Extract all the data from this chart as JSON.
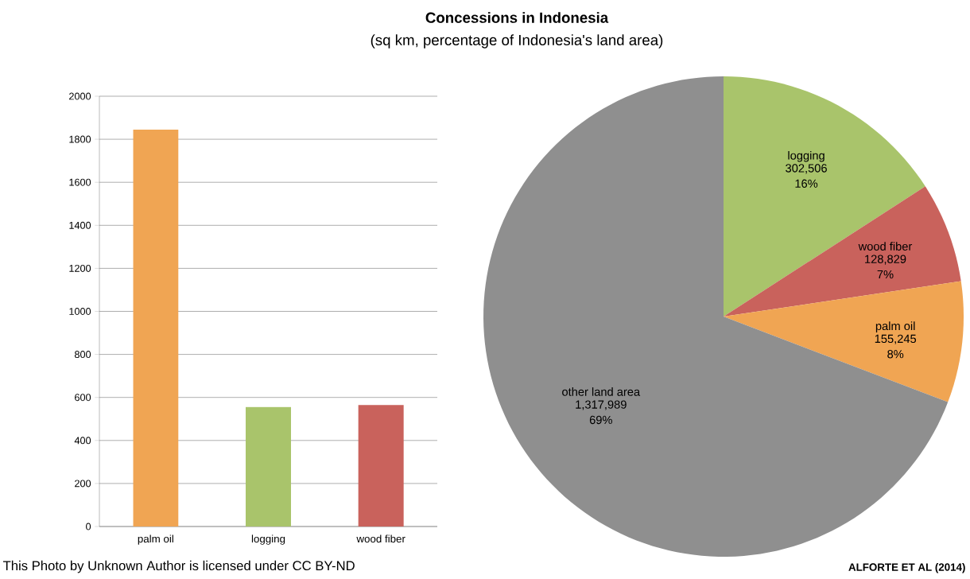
{
  "chart_data": [
    {
      "type": "bar",
      "categories": [
        "palm oil",
        "logging",
        "wood fiber"
      ],
      "values": [
        1845,
        555,
        565
      ],
      "colors": [
        "#f0a553",
        "#a9c46b",
        "#c9625c"
      ],
      "ylim": [
        0,
        2000
      ],
      "yticks": [
        0,
        200,
        400,
        600,
        800,
        1000,
        1200,
        1400,
        1600,
        1800,
        2000
      ],
      "grid": "y",
      "annotations": [
        "This Photo by Unknown Author is licensed under CC BY-ND"
      ]
    },
    {
      "type": "pie",
      "title": "Concessions in Indonesia",
      "subtitle": "(sq km, percentage of Indonesia's land area)",
      "categories": [
        "logging",
        "wood fiber",
        "palm oil",
        "other land area"
      ],
      "values": [
        302506,
        128829,
        155245,
        1317989
      ],
      "value_labels": [
        "302,506 16%",
        "128,829 7%",
        "155,245 8%",
        "1,317,989 69%"
      ],
      "colors": [
        "#a9c46b",
        "#c9625c",
        "#f0a553",
        "#8f8f8f"
      ],
      "annotations": [
        "ALFORTE ET AL (2014)"
      ]
    }
  ]
}
